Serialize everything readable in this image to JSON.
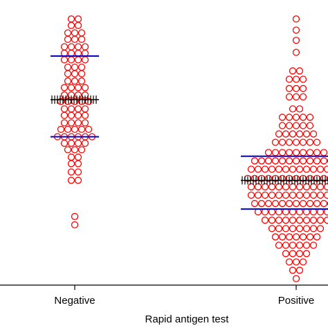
{
  "chart_data": {
    "type": "dotplot",
    "x_label": "Rapid antigen test",
    "categories": [
      "Negative",
      "Positive"
    ],
    "ylim": [
      10,
      40
    ],
    "point_color": "#ff0000",
    "median_color": "#000000",
    "quartile_color": "#0000cc",
    "groups": [
      {
        "values": [
          38.7,
          38.7,
          38.0,
          38.0,
          37.2,
          37.2,
          37.2,
          36.5,
          36.5,
          36.5,
          35.7,
          35.7,
          35.7,
          35.7,
          35.0,
          35.0,
          35.0,
          35.0,
          34.3,
          34.3,
          34.3,
          34.3,
          33.5,
          33.5,
          33.5,
          32.8,
          32.8,
          32.8,
          32.0,
          32.0,
          32.0,
          31.3,
          31.3,
          31.3,
          31.3,
          30.5,
          30.5,
          30.5,
          30.5,
          29.8,
          29.8,
          29.8,
          29.8,
          29.8,
          29.0,
          29.0,
          29.0,
          29.0,
          28.3,
          28.3,
          28.3,
          28.3,
          27.5,
          27.5,
          27.5,
          27.5,
          26.8,
          26.8,
          26.8,
          26.8,
          26.8,
          26.0,
          26.0,
          26.0,
          26.0,
          26.0,
          26.0,
          25.3,
          25.3,
          25.3,
          25.3,
          24.6,
          24.6,
          24.6,
          23.8,
          23.8,
          23.1,
          23.1,
          22.2,
          22.2,
          21.3,
          21.3,
          17.4,
          16.5
        ],
        "q1": 26.0,
        "median": 30.0,
        "q3": 34.7
      },
      {
        "values": [
          38.7,
          37.5,
          36.4,
          35.1,
          33.1,
          33.1,
          32.2,
          32.2,
          32.2,
          31.2,
          31.2,
          31.2,
          30.3,
          30.3,
          30.3,
          29.0,
          29.0,
          28.1,
          28.1,
          28.1,
          28.1,
          28.1,
          27.2,
          27.2,
          27.2,
          27.2,
          27.2,
          26.3,
          26.3,
          26.3,
          26.3,
          26.3,
          26.3,
          25.4,
          25.4,
          25.4,
          25.4,
          25.4,
          25.4,
          25.4,
          24.3,
          24.3,
          24.3,
          24.3,
          24.3,
          24.3,
          24.3,
          24.3,
          24.3,
          23.4,
          23.4,
          23.4,
          23.4,
          23.4,
          23.4,
          23.4,
          23.4,
          23.4,
          23.4,
          23.4,
          23.4,
          23.4,
          22.5,
          22.5,
          22.5,
          22.5,
          22.5,
          22.5,
          22.5,
          22.5,
          22.5,
          22.5,
          22.5,
          22.5,
          22.5,
          22.5,
          21.5,
          21.5,
          21.5,
          21.5,
          21.5,
          21.5,
          21.5,
          21.5,
          21.5,
          21.5,
          21.5,
          21.5,
          21.5,
          21.5,
          21.5,
          20.6,
          20.6,
          20.6,
          20.6,
          20.6,
          20.6,
          20.6,
          20.6,
          20.6,
          20.6,
          20.6,
          20.6,
          20.6,
          20.6,
          19.7,
          19.7,
          19.7,
          19.7,
          19.7,
          19.7,
          19.7,
          19.7,
          19.7,
          19.7,
          19.7,
          19.7,
          19.7,
          19.7,
          18.8,
          18.8,
          18.8,
          18.8,
          18.8,
          18.8,
          18.8,
          18.8,
          18.8,
          18.8,
          18.8,
          18.8,
          18.8,
          17.9,
          17.9,
          17.9,
          17.9,
          17.9,
          17.9,
          17.9,
          17.9,
          17.9,
          17.9,
          17.9,
          17.9,
          17.0,
          17.0,
          17.0,
          17.0,
          17.0,
          17.0,
          17.0,
          17.0,
          17.0,
          17.0,
          16.1,
          16.1,
          16.1,
          16.1,
          16.1,
          16.1,
          16.1,
          16.1,
          15.2,
          15.2,
          15.2,
          15.2,
          15.2,
          15.2,
          15.2,
          14.3,
          14.3,
          14.3,
          14.3,
          14.3,
          14.3,
          13.4,
          13.4,
          13.4,
          13.4,
          12.5,
          12.5,
          12.5,
          11.6,
          11.6,
          10.7
        ],
        "q1": 18.2,
        "median": 21.3,
        "q3": 23.9
      }
    ]
  }
}
